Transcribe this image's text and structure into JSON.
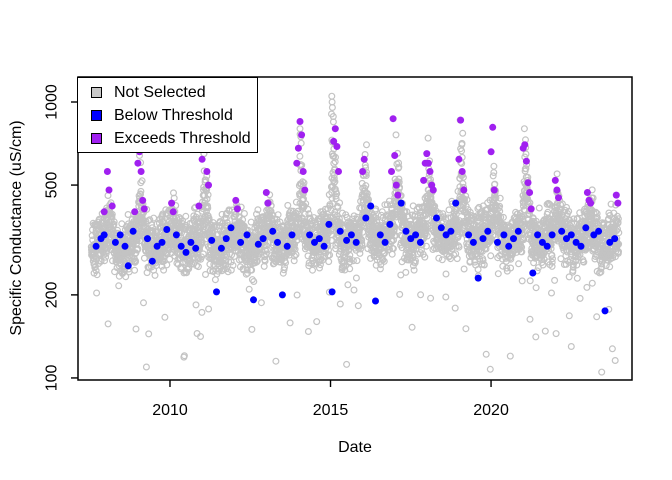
{
  "figure": {
    "xlabel": "Date",
    "ylabel": "Specific Conductance (uS/cm)"
  },
  "legend": {
    "position": "top-left",
    "items": [
      {
        "label": "Not Selected",
        "color": "#c9c9c9",
        "border": "#000000"
      },
      {
        "label": "Below Threshold",
        "color": "#0000ff",
        "border": "#000000"
      },
      {
        "label": "Exceeds Threshold",
        "color": "#a020f0",
        "border": "#000000"
      }
    ]
  },
  "chart_data": {
    "type": "scatter",
    "title": "",
    "xlabel": "Date",
    "ylabel": "Specific Conductance (uS/cm)",
    "grid": false,
    "legend_position": "top-left",
    "x_axis": {
      "ticks": [
        2010,
        2015,
        2020
      ],
      "range": [
        2007.135,
        2024.39
      ]
    },
    "y_axis": {
      "scale": "log10",
      "ticks": [
        100,
        200,
        500,
        1000
      ],
      "range": [
        98.3,
        1232
      ]
    },
    "series": [
      {
        "name": "Not Selected",
        "marker": "open-circle",
        "color": "#c3c3c3",
        "point_cloud": {
          "seed": 42,
          "t_start": 2007.55,
          "t_end": 2023.98,
          "t_step": 0.004,
          "noise_sd": 0.048,
          "low_outlier_prob": 0.015,
          "winter_center": 0.09,
          "winter_width": 0.058,
          "year_params": [
            [
              2008,
              310,
              480
            ],
            [
              2009,
              315,
              680
            ],
            [
              2010,
              318,
              460
            ],
            [
              2011,
              315,
              790
            ],
            [
              2012,
              318,
              430
            ],
            [
              2013,
              322,
              480
            ],
            [
              2014,
              328,
              860
            ],
            [
              2015,
              332,
              1060
            ],
            [
              2016,
              338,
              700
            ],
            [
              2017,
              342,
              800
            ],
            [
              2018,
              348,
              800
            ],
            [
              2019,
              344,
              870
            ],
            [
              2020,
              338,
              620
            ],
            [
              2021,
              334,
              820
            ],
            [
              2022,
              330,
              560
            ],
            [
              2023,
              326,
              490
            ],
            [
              2024,
              328,
              460
            ]
          ],
          "extra_points": [
            [
              2015.04,
              1050
            ],
            [
              2015.05,
              1000
            ],
            [
              2015.06,
              955
            ],
            [
              2015.03,
              905
            ],
            [
              2011.05,
              700
            ],
            [
              2011.06,
              650
            ],
            [
              2014.05,
              800
            ],
            [
              2019.04,
              860
            ],
            [
              2021.04,
              800
            ],
            [
              2009.05,
              640
            ],
            [
              2017.04,
              760
            ],
            [
              2018.04,
              740
            ],
            [
              2013.3,
              115
            ],
            [
              2015.5,
              112
            ],
            [
              2020.6,
              120
            ],
            [
              2022.5,
              130
            ],
            [
              2012.55,
              150
            ]
          ]
        }
      },
      {
        "name": "Below Threshold",
        "marker": "filled-circle",
        "color": "#0000ff",
        "points": [
          [
            2007.7,
            300
          ],
          [
            2007.85,
            320
          ],
          [
            2007.95,
            330
          ],
          [
            2008.3,
            310
          ],
          [
            2008.45,
            330
          ],
          [
            2008.6,
            300
          ],
          [
            2008.7,
            255
          ],
          [
            2008.85,
            340
          ],
          [
            2009.3,
            320
          ],
          [
            2009.45,
            265
          ],
          [
            2009.6,
            300
          ],
          [
            2009.75,
            310
          ],
          [
            2009.9,
            345
          ],
          [
            2010.2,
            330
          ],
          [
            2010.35,
            300
          ],
          [
            2010.5,
            285
          ],
          [
            2010.65,
            310
          ],
          [
            2010.8,
            295
          ],
          [
            2011.3,
            315
          ],
          [
            2011.45,
            205
          ],
          [
            2011.6,
            295
          ],
          [
            2011.75,
            320
          ],
          [
            2011.9,
            350
          ],
          [
            2012.2,
            310
          ],
          [
            2012.4,
            330
          ],
          [
            2012.6,
            192
          ],
          [
            2012.75,
            305
          ],
          [
            2012.9,
            320
          ],
          [
            2013.2,
            340
          ],
          [
            2013.35,
            310
          ],
          [
            2013.5,
            200
          ],
          [
            2013.65,
            300
          ],
          [
            2013.8,
            330
          ],
          [
            2014.35,
            330
          ],
          [
            2014.5,
            310
          ],
          [
            2014.65,
            320
          ],
          [
            2014.8,
            300
          ],
          [
            2014.95,
            360
          ],
          [
            2015.05,
            205
          ],
          [
            2015.3,
            340
          ],
          [
            2015.5,
            315
          ],
          [
            2015.65,
            330
          ],
          [
            2015.8,
            310
          ],
          [
            2016.1,
            380
          ],
          [
            2016.25,
            420
          ],
          [
            2016.4,
            190
          ],
          [
            2016.55,
            330
          ],
          [
            2016.7,
            310
          ],
          [
            2016.85,
            360
          ],
          [
            2017.2,
            430
          ],
          [
            2017.35,
            340
          ],
          [
            2017.5,
            320
          ],
          [
            2017.65,
            330
          ],
          [
            2017.8,
            310
          ],
          [
            2018.3,
            380
          ],
          [
            2018.45,
            350
          ],
          [
            2018.6,
            330
          ],
          [
            2018.75,
            340
          ],
          [
            2018.9,
            430
          ],
          [
            2019.3,
            330
          ],
          [
            2019.45,
            310
          ],
          [
            2019.6,
            230
          ],
          [
            2019.75,
            320
          ],
          [
            2019.9,
            340
          ],
          [
            2020.2,
            310
          ],
          [
            2020.4,
            330
          ],
          [
            2020.55,
            300
          ],
          [
            2020.7,
            320
          ],
          [
            2020.85,
            340
          ],
          [
            2021.3,
            240
          ],
          [
            2021.45,
            330
          ],
          [
            2021.6,
            310
          ],
          [
            2021.75,
            300
          ],
          [
            2021.9,
            330
          ],
          [
            2022.2,
            340
          ],
          [
            2022.35,
            320
          ],
          [
            2022.5,
            330
          ],
          [
            2022.65,
            310
          ],
          [
            2022.8,
            300
          ],
          [
            2022.95,
            350
          ],
          [
            2023.2,
            330
          ],
          [
            2023.35,
            340
          ],
          [
            2023.55,
            175
          ],
          [
            2023.7,
            310
          ],
          [
            2023.85,
            320
          ]
        ]
      },
      {
        "name": "Exceeds Threshold",
        "marker": "filled-circle",
        "color": "#a020f0",
        "points": [
          [
            2007.95,
            400
          ],
          [
            2008.05,
            560
          ],
          [
            2008.1,
            480
          ],
          [
            2008.2,
            420
          ],
          [
            2008.9,
            400
          ],
          [
            2009.0,
            600
          ],
          [
            2009.05,
            660
          ],
          [
            2009.1,
            560
          ],
          [
            2009.15,
            440
          ],
          [
            2009.2,
            410
          ],
          [
            2010.05,
            430
          ],
          [
            2010.1,
            400
          ],
          [
            2010.9,
            420
          ],
          [
            2011.0,
            620
          ],
          [
            2011.05,
            780
          ],
          [
            2011.1,
            700
          ],
          [
            2011.15,
            560
          ],
          [
            2011.2,
            500
          ],
          [
            2012.05,
            440
          ],
          [
            2012.1,
            410
          ],
          [
            2013.0,
            470
          ],
          [
            2013.05,
            430
          ],
          [
            2013.95,
            600
          ],
          [
            2014.0,
            680
          ],
          [
            2014.05,
            850
          ],
          [
            2014.1,
            760
          ],
          [
            2014.15,
            560
          ],
          [
            2014.2,
            480
          ],
          [
            2015.1,
            720
          ],
          [
            2015.15,
            800
          ],
          [
            2015.2,
            690
          ],
          [
            2015.25,
            560
          ],
          [
            2016.0,
            560
          ],
          [
            2016.05,
            620
          ],
          [
            2016.9,
            560
          ],
          [
            2016.95,
            870
          ],
          [
            2017.0,
            640
          ],
          [
            2017.05,
            500
          ],
          [
            2017.1,
            460
          ],
          [
            2017.9,
            520
          ],
          [
            2017.95,
            600
          ],
          [
            2018.0,
            650
          ],
          [
            2018.05,
            600
          ],
          [
            2018.1,
            560
          ],
          [
            2018.15,
            500
          ],
          [
            2018.2,
            480
          ],
          [
            2019.0,
            620
          ],
          [
            2019.05,
            860
          ],
          [
            2019.1,
            560
          ],
          [
            2019.15,
            480
          ],
          [
            2020.0,
            660
          ],
          [
            2020.05,
            810
          ],
          [
            2020.1,
            480
          ],
          [
            2021.0,
            680
          ],
          [
            2021.05,
            700
          ],
          [
            2021.1,
            610
          ],
          [
            2021.15,
            510
          ],
          [
            2021.2,
            470
          ],
          [
            2021.25,
            410
          ],
          [
            2022.0,
            520
          ],
          [
            2022.05,
            480
          ],
          [
            2022.1,
            450
          ],
          [
            2023.0,
            470
          ],
          [
            2023.05,
            440
          ],
          [
            2023.1,
            430
          ],
          [
            2023.9,
            460
          ],
          [
            2023.95,
            430
          ]
        ]
      }
    ]
  }
}
